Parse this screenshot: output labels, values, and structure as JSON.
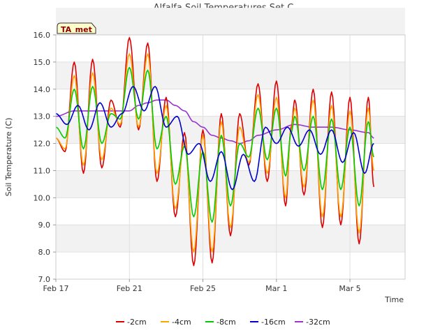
{
  "chart_data": {
    "type": "line",
    "title": "Alfalfa Soil Temperatures Set C",
    "xlabel": "Time",
    "ylabel": "Soil Temperature (C)",
    "badge": "TA_met",
    "ylim": [
      7.0,
      16.0
    ],
    "y_ticks": [
      7.0,
      8.0,
      9.0,
      10.0,
      11.0,
      12.0,
      13.0,
      14.0,
      15.0,
      16.0
    ],
    "x_start": "Feb 17",
    "x_end": "Mar 7",
    "x_ticks": [
      {
        "day": 0,
        "label": "Feb 17"
      },
      {
        "day": 4,
        "label": "Feb 21"
      },
      {
        "day": 8,
        "label": "Feb 25"
      },
      {
        "day": 12,
        "label": "Mar 1"
      },
      {
        "day": 16,
        "label": "Mar 5"
      }
    ],
    "grid": true,
    "legend_position": "bottom",
    "daily_maxima": {
      "description_days": [
        0.9,
        1.9,
        2.9,
        3.9,
        4.9,
        5.9,
        6.9,
        7.9,
        8.9,
        9.9,
        10.9,
        11.9,
        12.9,
        13.9,
        14.9,
        15.9,
        16.9
      ],
      "neg2cm": [
        15.0,
        15.1,
        13.6,
        15.9,
        15.7,
        13.7,
        12.4,
        12.5,
        13.1,
        13.1,
        14.2,
        14.3,
        13.6,
        14.0,
        13.9,
        13.7,
        13.7
      ],
      "neg4cm": [
        14.5,
        14.6,
        13.3,
        15.3,
        15.3,
        13.4,
        12.1,
        12.3,
        12.8,
        12.6,
        13.8,
        13.7,
        13.3,
        13.6,
        13.4,
        13.2,
        13.3
      ],
      "neg8cm": [
        14.0,
        14.1,
        13.1,
        14.8,
        14.7,
        13.0,
        11.9,
        11.7,
        12.3,
        12.0,
        13.3,
        13.3,
        13.0,
        13.0,
        12.9,
        12.6,
        12.8
      ],
      "neg16cm": [
        13.4,
        13.5,
        13.1,
        14.1,
        14.1,
        13.1,
        12.0,
        11.7,
        11.6,
        11.7,
        12.6,
        12.6,
        12.5,
        12.5,
        12.5,
        12.4,
        12.2
      ]
    },
    "series": [
      {
        "name": "-2cm",
        "color": "#dd0000",
        "amp_scale": 1.0,
        "x": [
          0.0,
          0.5,
          1.0,
          1.5,
          2.0,
          2.5,
          3.0,
          3.5,
          4.0,
          4.5,
          5.0,
          5.5,
          6.0,
          6.5,
          7.0,
          7.5,
          8.0,
          8.5,
          9.0,
          9.5,
          10.0,
          10.5,
          11.0,
          11.5,
          12.0,
          12.5,
          12.8,
          13.0,
          13.5,
          14.0,
          14.5,
          15.0,
          15.5,
          16.0,
          16.5,
          17.0,
          17.3
        ],
        "y": [
          12.2,
          11.7,
          15.0,
          10.9,
          15.1,
          11.1,
          13.6,
          12.6,
          15.9,
          12.5,
          15.7,
          10.6,
          13.7,
          9.3,
          12.4,
          7.5,
          12.5,
          7.6,
          13.1,
          8.6,
          13.1,
          11.2,
          14.2,
          10.6,
          14.3,
          9.7,
          12.6,
          13.6,
          10.1,
          14.0,
          8.9,
          13.9,
          9.0,
          13.7,
          8.3,
          13.7,
          10.4
        ]
      },
      {
        "name": "-4cm",
        "color": "#ffa500",
        "x": [
          0.0,
          0.5,
          1.0,
          1.5,
          2.0,
          2.5,
          3.0,
          3.5,
          4.0,
          4.5,
          5.0,
          5.5,
          6.0,
          6.5,
          7.0,
          7.5,
          8.0,
          8.5,
          9.0,
          9.5,
          10.0,
          10.5,
          11.0,
          11.5,
          12.0,
          12.5,
          12.8,
          13.0,
          13.5,
          14.0,
          14.5,
          15.0,
          15.5,
          16.0,
          16.5,
          17.0,
          17.3
        ],
        "y": [
          12.2,
          11.8,
          14.5,
          11.2,
          14.6,
          11.4,
          13.3,
          12.7,
          15.3,
          12.6,
          15.3,
          10.9,
          13.4,
          9.6,
          12.1,
          8.0,
          12.3,
          8.0,
          12.8,
          8.9,
          12.6,
          11.3,
          13.8,
          10.9,
          13.7,
          10.0,
          12.5,
          13.3,
          10.4,
          13.6,
          9.3,
          13.4,
          9.3,
          13.2,
          8.7,
          13.3,
          11.0
        ]
      },
      {
        "name": "-8cm",
        "color": "#00cc00",
        "x": [
          0.0,
          0.5,
          1.0,
          1.5,
          2.0,
          2.5,
          3.0,
          3.5,
          4.0,
          4.5,
          5.0,
          5.5,
          6.0,
          6.5,
          7.0,
          7.5,
          8.0,
          8.5,
          9.0,
          9.5,
          10.0,
          10.5,
          11.0,
          11.5,
          12.0,
          12.5,
          12.8,
          13.0,
          13.5,
          14.0,
          14.5,
          15.0,
          15.5,
          16.0,
          16.5,
          17.0,
          17.3
        ],
        "y": [
          12.6,
          12.2,
          14.0,
          11.8,
          14.1,
          12.0,
          13.1,
          12.9,
          14.8,
          12.9,
          14.7,
          11.8,
          13.0,
          10.5,
          11.9,
          9.3,
          11.7,
          9.1,
          12.3,
          9.7,
          12.0,
          11.5,
          13.3,
          11.4,
          13.3,
          10.8,
          12.4,
          13.0,
          11.0,
          13.0,
          10.3,
          12.9,
          10.3,
          12.6,
          9.7,
          12.8,
          11.5
        ]
      },
      {
        "name": "-16cm",
        "color": "#0000cc",
        "x": [
          0.0,
          0.6,
          1.2,
          1.8,
          2.4,
          3.0,
          3.6,
          4.2,
          4.8,
          5.4,
          6.0,
          6.6,
          7.2,
          7.8,
          8.4,
          9.0,
          9.6,
          10.2,
          10.8,
          11.4,
          12.0,
          12.6,
          13.2,
          13.8,
          14.4,
          15.0,
          15.6,
          16.2,
          16.8,
          17.3
        ],
        "y": [
          13.1,
          12.7,
          13.4,
          12.5,
          13.5,
          12.6,
          13.1,
          14.1,
          13.2,
          14.1,
          12.6,
          13.0,
          11.6,
          12.0,
          10.6,
          11.7,
          10.3,
          11.6,
          10.6,
          12.6,
          12.0,
          12.6,
          11.9,
          12.5,
          11.6,
          12.5,
          11.3,
          12.4,
          10.9,
          12.0
        ]
      },
      {
        "name": "-32cm",
        "color": "#9933cc",
        "x": [
          0.0,
          1.0,
          2.0,
          3.0,
          4.0,
          4.5,
          5.0,
          5.5,
          6.0,
          6.5,
          7.0,
          7.5,
          8.0,
          8.5,
          9.0,
          9.5,
          10.0,
          10.5,
          11.0,
          12.0,
          13.0,
          14.0,
          15.0,
          16.0,
          17.0,
          17.3
        ],
        "y": [
          13.0,
          13.2,
          13.2,
          13.2,
          13.2,
          13.4,
          13.5,
          13.6,
          13.6,
          13.4,
          13.2,
          12.8,
          12.6,
          12.3,
          12.2,
          12.1,
          12.0,
          12.1,
          12.3,
          12.5,
          12.7,
          12.6,
          12.6,
          12.5,
          12.4,
          12.2
        ]
      }
    ]
  }
}
